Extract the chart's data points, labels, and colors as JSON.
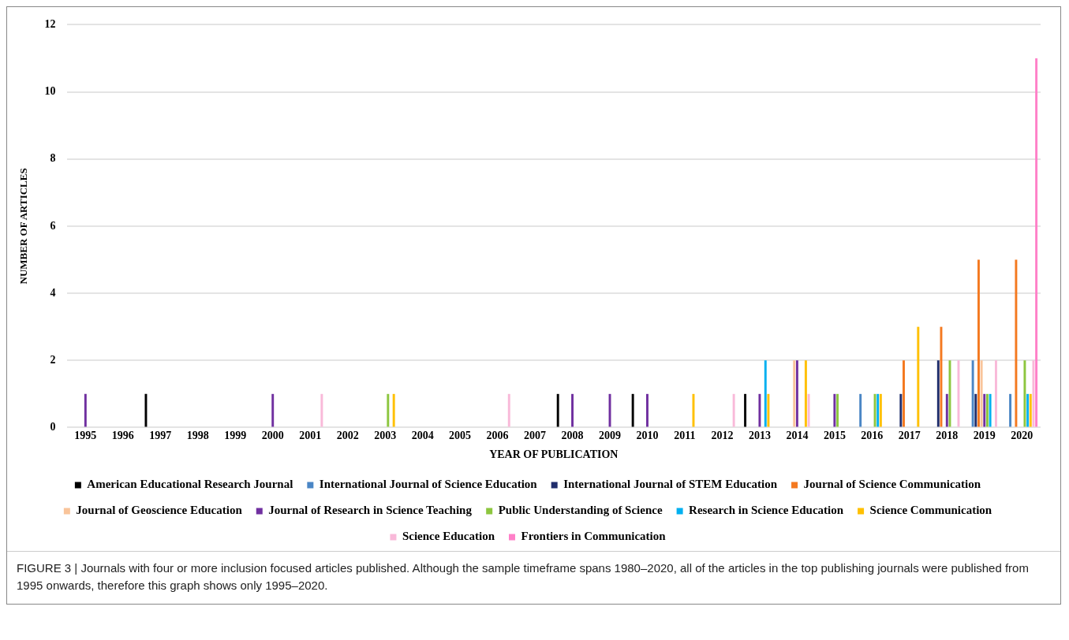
{
  "chart_data": {
    "type": "bar",
    "xlabel": "YEAR OF PUBLICATION",
    "ylabel": "NUMBER OF ARTICLES",
    "categories": [
      "1995",
      "1996",
      "1997",
      "1998",
      "1999",
      "2000",
      "2001",
      "2002",
      "2003",
      "2004",
      "2005",
      "2006",
      "2007",
      "2008",
      "2009",
      "2010",
      "2011",
      "2012",
      "2013",
      "2014",
      "2015",
      "2016",
      "2017",
      "2018",
      "2019",
      "2020"
    ],
    "series": [
      {
        "name": "American Educational Research Journal",
        "color": "#000000",
        "values": [
          0,
          0,
          1,
          0,
          0,
          0,
          0,
          0,
          0,
          0,
          0,
          0,
          0,
          1,
          0,
          1,
          0,
          0,
          1,
          0,
          0,
          0,
          0,
          0,
          0,
          0
        ]
      },
      {
        "name": "International Journal of Science Education",
        "color": "#4a86c5",
        "values": [
          0,
          0,
          0,
          0,
          0,
          0,
          0,
          0,
          0,
          0,
          0,
          0,
          0,
          0,
          0,
          0,
          0,
          0,
          0,
          0,
          0,
          1,
          0,
          0,
          2,
          1
        ]
      },
      {
        "name": "International Journal of STEM Education",
        "color": "#1f2d6b",
        "values": [
          0,
          0,
          0,
          0,
          0,
          0,
          0,
          0,
          0,
          0,
          0,
          0,
          0,
          0,
          0,
          0,
          0,
          0,
          0,
          0,
          0,
          0,
          1,
          2,
          1,
          0
        ]
      },
      {
        "name": "Journal of Science Communication",
        "color": "#f47920",
        "values": [
          0,
          0,
          0,
          0,
          0,
          0,
          0,
          0,
          0,
          0,
          0,
          0,
          0,
          0,
          0,
          0,
          0,
          0,
          0,
          0,
          0,
          0,
          2,
          3,
          5,
          5
        ]
      },
      {
        "name": "Journal of Geoscience Education",
        "color": "#f9c49a",
        "values": [
          0,
          0,
          0,
          0,
          0,
          0,
          0,
          0,
          0,
          0,
          0,
          0,
          0,
          0,
          0,
          0,
          0,
          0,
          0,
          2,
          0,
          0,
          0,
          0,
          2,
          0
        ]
      },
      {
        "name": "Journal of Research in Science Teaching",
        "color": "#7030a0",
        "values": [
          1,
          0,
          0,
          0,
          0,
          1,
          0,
          0,
          0,
          0,
          0,
          0,
          0,
          1,
          1,
          1,
          0,
          0,
          1,
          2,
          1,
          0,
          0,
          1,
          1,
          0
        ]
      },
      {
        "name": "Public Understanding of Science",
        "color": "#8dc63f",
        "values": [
          0,
          0,
          0,
          0,
          0,
          0,
          0,
          0,
          1,
          0,
          0,
          0,
          0,
          0,
          0,
          0,
          0,
          0,
          0,
          0,
          1,
          1,
          0,
          2,
          1,
          2
        ]
      },
      {
        "name": "Research in Science Education",
        "color": "#00b0f0",
        "values": [
          0,
          0,
          0,
          0,
          0,
          0,
          0,
          0,
          0,
          0,
          0,
          0,
          0,
          0,
          0,
          0,
          0,
          0,
          2,
          0,
          0,
          1,
          0,
          0,
          1,
          1
        ]
      },
      {
        "name": "Science Communication",
        "color": "#ffc000",
        "values": [
          0,
          0,
          0,
          0,
          0,
          0,
          0,
          0,
          1,
          0,
          0,
          0,
          0,
          0,
          0,
          0,
          1,
          0,
          1,
          2,
          0,
          1,
          3,
          0,
          0,
          1
        ]
      },
      {
        "name": "Science Education",
        "color": "#f9b9d9",
        "values": [
          0,
          0,
          0,
          0,
          0,
          0,
          1,
          0,
          0,
          0,
          0,
          1,
          0,
          0,
          0,
          0,
          0,
          1,
          0,
          1,
          0,
          0,
          0,
          2,
          2,
          2
        ]
      },
      {
        "name": "Frontiers in Communication",
        "color": "#ff80c8",
        "values": [
          0,
          0,
          0,
          0,
          0,
          0,
          0,
          0,
          0,
          0,
          0,
          0,
          0,
          0,
          0,
          0,
          0,
          0,
          0,
          0,
          0,
          0,
          0,
          0,
          0,
          11
        ]
      }
    ],
    "ylim": [
      0,
      12
    ],
    "yticks": [
      0,
      2,
      4,
      6,
      8,
      10,
      12
    ],
    "grid": "y",
    "legend": "bottom",
    "annotations": [
      "FIGURE 3 | Journals with four or more inclusion focused articles published. Although the sample timeframe spans 1980–2020, all of the articles in the top publishing journals were published from 1995 onwards, therefore this graph shows only 1995–2020."
    ]
  }
}
